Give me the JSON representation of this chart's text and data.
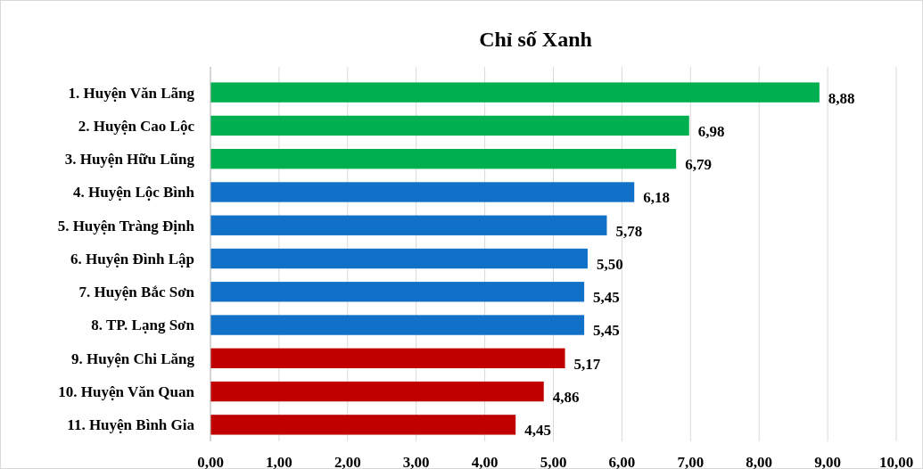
{
  "chart_data": {
    "type": "bar",
    "orientation": "horizontal",
    "title": "Chỉ số Xanh",
    "categories": [
      "1. Huyện Văn Lãng",
      "2. Huyện Cao Lộc",
      "3. Huyện Hữu Lũng",
      "4. Huyện Lộc Bình",
      "5. Huyện Tràng Định",
      "6. Huyện Đình Lập",
      "7. Huyện Bắc Sơn",
      "8. TP. Lạng Sơn",
      "9. Huyện Chi Lăng",
      "10. Huyện Văn Quan",
      "11. Huyện Bình Gia"
    ],
    "values": [
      8.88,
      6.98,
      6.79,
      6.18,
      5.78,
      5.5,
      5.45,
      5.45,
      5.17,
      4.86,
      4.45
    ],
    "colors": [
      "#00b050",
      "#00b050",
      "#00b050",
      "#1170c8",
      "#1170c8",
      "#1170c8",
      "#1170c8",
      "#1170c8",
      "#c00000",
      "#c00000",
      "#c00000"
    ],
    "value_labels": [
      "8,88",
      "6,98",
      "6,79",
      "6,18",
      "5,78",
      "5,50",
      "5,45",
      "5,45",
      "5,17",
      "4,86",
      "4,45"
    ],
    "xlim": [
      0,
      10
    ],
    "xticks": [
      {
        "value": 0,
        "label": "0,00"
      },
      {
        "value": 1,
        "label": "1,00"
      },
      {
        "value": 2,
        "label": "2,00"
      },
      {
        "value": 3,
        "label": "3,00"
      },
      {
        "value": 4,
        "label": "4,00"
      },
      {
        "value": 5,
        "label": "5,00"
      },
      {
        "value": 6,
        "label": "6,00"
      },
      {
        "value": 7,
        "label": "7,00"
      },
      {
        "value": 8,
        "label": "8,00"
      },
      {
        "value": 9,
        "label": "9,00"
      },
      {
        "value": 10,
        "label": "10,00"
      }
    ],
    "grid": "x"
  }
}
